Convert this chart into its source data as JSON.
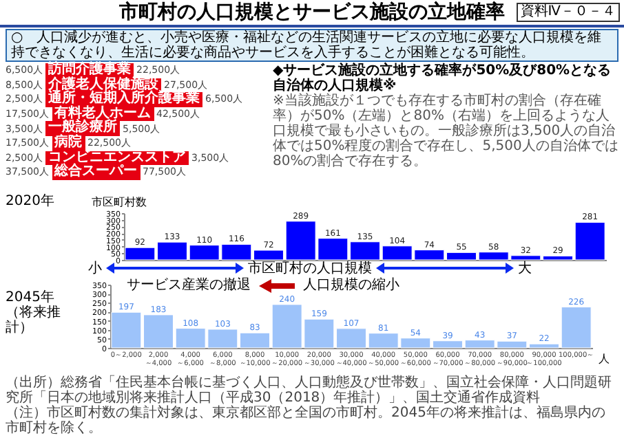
{
  "chart_data": [
    {
      "type": "bar",
      "title": "市町村の人口規模とサービス施設の立地確率",
      "subtitle": "○　人口減少が進むと、小売や医療・福祉などの生活関連サービスの立地に必要な人口規模を維持できなくなり、生活に必要な商品やサービスを入手することが困難となる可能性。",
      "xlabel": "市区町村の人口規模",
      "ylabel": "市区町村数",
      "categories": [
        null,
        null,
        null,
        null,
        null,
        null,
        null,
        null,
        null,
        null,
        null,
        null,
        null,
        null,
        null
      ],
      "values": [
        92,
        133,
        110,
        116,
        72,
        289,
        161,
        135,
        104,
        74,
        55,
        58,
        32,
        29,
        281
      ],
      "color": "#0000ff",
      "ylim": [
        0,
        350
      ],
      "yticks": [
        0,
        50,
        100,
        150,
        200,
        250,
        300,
        350
      ],
      "data_labels": true,
      "tick_labels": "y",
      "annotations": [
        "資料Ⅳ－０－４",
        "◆サービス施設の立地する確率が50%及び80%となる自治体の人口規模※",
        "6,500人",
        "訪問介護事業",
        "22,500人",
        "8,500人",
        "介護老人保健施設",
        "27,500人",
        "2,500人",
        "通所・短期入所介護事業",
        "6,500人",
        "17,500人",
        "有料老人ホーム",
        "42,500人",
        "3,500人",
        "一般診療所",
        "5,500人",
        "17,500人",
        "病院",
        "22,500人",
        "2,500人",
        "コンビニエンスストア",
        "3,500人",
        "37,500人",
        "総合スーパー",
        "77,500人",
        "※当該施設が１つでも存在する市町村の割合（存在確率）が50%（左端）と80%（右端）を上回るような人口規模で最も小さいもの。一般診療所は3,500人の自治体では50%程度の割合で存在し、5,500人の自治体では80%の割合で存在する。",
        "2020年",
        "小",
        "大",
        "（出所）総務省「住民基本台帳に基づく人口、人口動態及び世帯数」、国立社会保障・人口問題研究所「日本の地域別将来推計人口（平成30（2018）年推計）」、国土交通省作成資料",
        "（注）市区町村数の集計対象は、東京都区部と全国の市町村。2045年の将来推計は、福島県内の市町村を除く。"
      ]
    },
    {
      "type": "bar",
      "xlabel": "人",
      "categories": [
        "0～2,000",
        "2,000\n～4,000",
        "4,000\n～6,000",
        "6,000\n～8,000",
        "8,000\n～10,000",
        "10,000\n～20,000",
        "20,000\n～30,000",
        "30,000\n～40,000",
        "40,000\n～50,000",
        "50,000\n～60,000",
        "60,000\n～70,000",
        "70,000\n～80,000",
        "80,000\n～90,000",
        "90,000\n～100,000",
        "100,000～"
      ],
      "values": [
        197,
        183,
        108,
        103,
        83,
        240,
        159,
        107,
        81,
        54,
        39,
        43,
        37,
        22,
        226
      ],
      "color": "#9dc3fa",
      "ylim": [
        0,
        350
      ],
      "yticks": [
        0,
        50,
        100,
        150,
        200,
        250,
        300,
        350
      ],
      "data_labels": true,
      "annotations": [
        "2045年",
        "（将来推計）",
        "サービス産業の撤退",
        "人口規模の縮小"
      ]
    }
  ]
}
